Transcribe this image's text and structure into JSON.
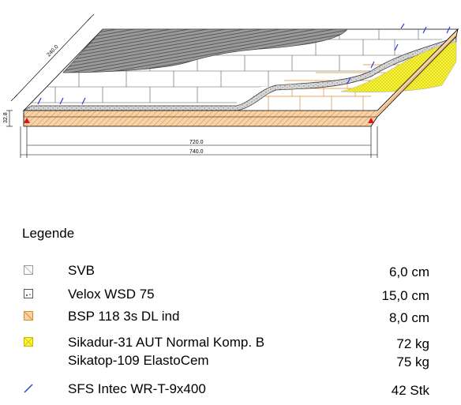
{
  "drawing": {
    "dimensions": {
      "diagonal": "240.0",
      "height": "32.8",
      "inner_length": "720.0",
      "outer_length": "740.0"
    }
  },
  "legend": {
    "title": "Legende",
    "items": [
      {
        "name": "SVB",
        "qty": "6,0 cm",
        "icon": "hatch-icon"
      },
      {
        "name": "Velox WSD 75",
        "qty": "15,0 cm",
        "icon": "velox-icon"
      },
      {
        "name": "BSP 118 3s DL ind",
        "qty": "8,0 cm",
        "icon": "orange-hatch-icon"
      },
      {
        "name": "Sikadur-31 AUT Normal Komp. B",
        "qty": "72 kg",
        "icon": "yellow-crosshatch-icon"
      },
      {
        "name": "Sikatop-109 ElastoCem",
        "qty": "75 kg",
        "icon": ""
      },
      {
        "name": "SFS Intec WR-T-9x400",
        "qty": "42 Stk",
        "icon": "screw-icon"
      }
    ],
    "colors": {
      "orange": "#e8a050",
      "yellow": "#f7f33a",
      "screw": "#2a3bd6"
    }
  }
}
